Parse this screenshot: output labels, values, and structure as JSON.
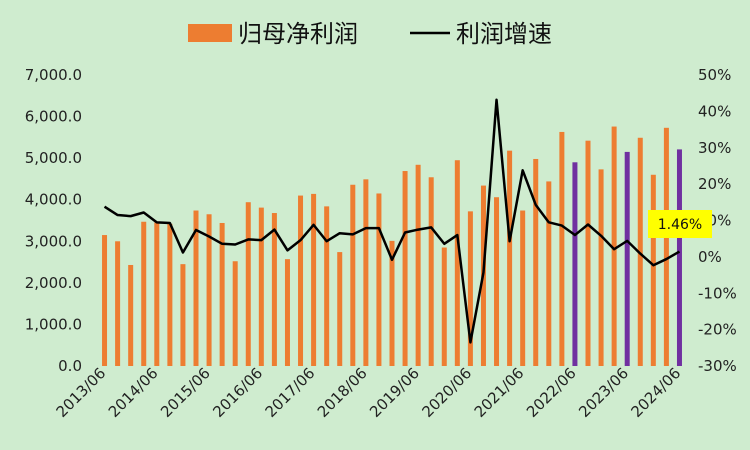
{
  "chart_data": {
    "type": "bar+line",
    "legend": [
      {
        "name": "归母净利润",
        "kind": "bar",
        "color": "#ed7d31"
      },
      {
        "name": "利润增速",
        "kind": "line",
        "color": "#000000"
      }
    ],
    "left_axis": {
      "ylim": [
        0,
        7000
      ],
      "ticks": [
        "0.0",
        "1,000.0",
        "2,000.0",
        "3,000.0",
        "4,000.0",
        "5,000.0",
        "6,000.0",
        "7,000.0"
      ]
    },
    "right_axis": {
      "ylim": [
        -30,
        50
      ],
      "ticks": [
        "-30%",
        "-20%",
        "-10%",
        "0%",
        "10%",
        "20%",
        "30%",
        "40%",
        "50%"
      ]
    },
    "x_tick_labels": [
      "2013/06",
      "2014/06",
      "2015/06",
      "2016/06",
      "2017/06",
      "2018/06",
      "2019/06",
      "2020/06",
      "2021/06",
      "2022/06",
      "2023/06",
      "2024/06"
    ],
    "bars": [
      3150,
      3000,
      2430,
      3470,
      3450,
      3420,
      2450,
      3740,
      3650,
      3440,
      2520,
      3940,
      3810,
      3680,
      2570,
      4100,
      4140,
      3840,
      2740,
      4360,
      4490,
      4150,
      3010,
      4690,
      4840,
      4540,
      2850,
      4950,
      3720,
      4340,
      4060,
      5180,
      3740,
      4980,
      4440,
      5630,
      4900,
      5420,
      4730,
      5760,
      5150,
      5490,
      4600,
      5730,
      5210
    ],
    "growth": [
      13.8,
      11.5,
      11.2,
      12.2,
      9.5,
      9.3,
      1.2,
      7.4,
      5.6,
      3.6,
      3.4,
      4.8,
      4.6,
      7.5,
      1.8,
      4.6,
      8.8,
      4.3,
      6.5,
      6.2,
      7.9,
      7.9,
      -0.8,
      6.7,
      7.5,
      8.1,
      3.6,
      6.0,
      -23.5,
      -4.3,
      43.2,
      4.3,
      23.8,
      14.3,
      9.5,
      8.6,
      6.0,
      8.9,
      5.8,
      2.1,
      4.4,
      0.9,
      -2.3,
      -0.6,
      1.46
    ],
    "highlighted_bars": [
      36,
      40,
      44
    ],
    "highlight_color": "#7030a0",
    "annotation": {
      "text": "1.46%",
      "background": "#ffff00"
    }
  }
}
